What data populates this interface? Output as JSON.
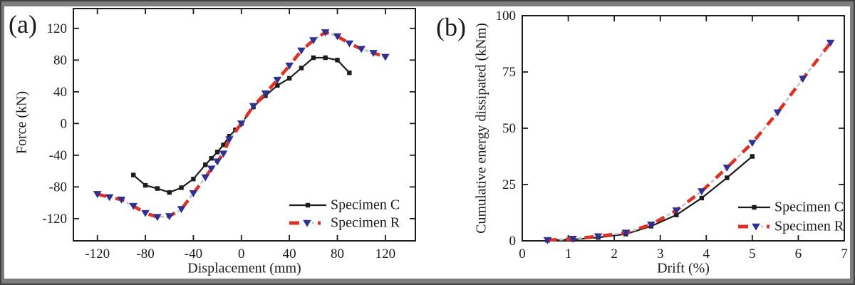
{
  "colors": {
    "axis_black": "#1c1c1c",
    "specimen_c": "#1c1c1c",
    "specimen_r_line": "#df3026",
    "specimen_r_marker": "#2e3191",
    "frame_gray": "#7d7d7d",
    "frame_edge": "#3f3f3f",
    "background": "#ffffff"
  },
  "chart_data": [
    {
      "id": "a",
      "type": "line",
      "panel_label": "(a)",
      "title": "",
      "xlabel": "Displacement (mm)",
      "ylabel": "Force (kN)",
      "xlim": [
        -140,
        145
      ],
      "ylim": [
        -148,
        145
      ],
      "xticks": [
        -120,
        -80,
        -40,
        0,
        40,
        80,
        120
      ],
      "yticks": [
        -120,
        -80,
        -40,
        0,
        40,
        80,
        120
      ],
      "grid": false,
      "legend_position": "lower right",
      "series": [
        {
          "name": "Specimen C",
          "line_color": "#1c1c1c",
          "line_style": "solid",
          "marker": "square",
          "marker_color": "#1c1c1c",
          "points": [
            [
              -90,
              -65
            ],
            [
              -80,
              -78
            ],
            [
              -70,
              -82
            ],
            [
              -60,
              -87
            ],
            [
              -50,
              -81
            ],
            [
              -40,
              -70
            ],
            [
              -30,
              -52
            ],
            [
              -25,
              -44
            ],
            [
              -20,
              -36
            ],
            [
              -15,
              -27
            ],
            [
              -10,
              -16
            ],
            [
              -5,
              -8
            ],
            [
              0,
              0
            ],
            [
              10,
              21
            ],
            [
              20,
              35
            ],
            [
              30,
              48
            ],
            [
              40,
              57
            ],
            [
              50,
              70
            ],
            [
              60,
              83
            ],
            [
              70,
              83
            ],
            [
              80,
              80
            ],
            [
              90,
              64
            ]
          ]
        },
        {
          "name": "Specimen R",
          "line_color": "#df3026",
          "line_style": "dash-dot",
          "marker": "triangle-down",
          "marker_color": "#2e3191",
          "points": [
            [
              -120,
              -89
            ],
            [
              -110,
              -93
            ],
            [
              -100,
              -96
            ],
            [
              -90,
              -104
            ],
            [
              -80,
              -113
            ],
            [
              -70,
              -118
            ],
            [
              -60,
              -117
            ],
            [
              -50,
              -108
            ],
            [
              -40,
              -88
            ],
            [
              -30,
              -68
            ],
            [
              -25,
              -57
            ],
            [
              -20,
              -48
            ],
            [
              -15,
              -38
            ],
            [
              -10,
              -20
            ],
            [
              0,
              0
            ],
            [
              10,
              22
            ],
            [
              20,
              38
            ],
            [
              30,
              55
            ],
            [
              40,
              73
            ],
            [
              50,
              92
            ],
            [
              60,
              105
            ],
            [
              70,
              115
            ],
            [
              80,
              110
            ],
            [
              90,
              101
            ],
            [
              100,
              94
            ],
            [
              110,
              89
            ],
            [
              120,
              84
            ]
          ]
        }
      ]
    },
    {
      "id": "b",
      "type": "line",
      "panel_label": "(b)",
      "title": "",
      "xlabel": "Drift (%)",
      "ylabel": "Cumulative energy dissipated (kNm)",
      "xlim": [
        0,
        7
      ],
      "ylim": [
        0,
        100
      ],
      "xticks": [
        0,
        1,
        2,
        3,
        4,
        5,
        6,
        7
      ],
      "yticks": [
        0,
        25,
        50,
        75,
        100
      ],
      "grid": false,
      "legend_position": "lower right",
      "series": [
        {
          "name": "Specimen C",
          "line_color": "#1c1c1c",
          "line_style": "solid",
          "marker": "square",
          "marker_color": "#1c1c1c",
          "points": [
            [
              0.55,
              0.2
            ],
            [
              1.1,
              0.6
            ],
            [
              1.65,
              1.5
            ],
            [
              2.25,
              3.0
            ],
            [
              2.8,
              6.5
            ],
            [
              3.35,
              11.5
            ],
            [
              3.9,
              19
            ],
            [
              4.45,
              28
            ],
            [
              5.0,
              37.5
            ]
          ]
        },
        {
          "name": "Specimen R",
          "line_color": "#df3026",
          "line_style": "dash-dot",
          "marker": "triangle-down",
          "marker_color": "#2e3191",
          "points": [
            [
              0.55,
              0.3
            ],
            [
              1.1,
              0.9
            ],
            [
              1.65,
              2.0
            ],
            [
              2.25,
              3.6
            ],
            [
              2.8,
              7.2
            ],
            [
              3.35,
              13.5
            ],
            [
              3.9,
              22
            ],
            [
              4.45,
              32.5
            ],
            [
              5.0,
              43.5
            ],
            [
              5.55,
              57
            ],
            [
              6.1,
              72
            ],
            [
              6.7,
              88
            ]
          ]
        }
      ]
    }
  ]
}
